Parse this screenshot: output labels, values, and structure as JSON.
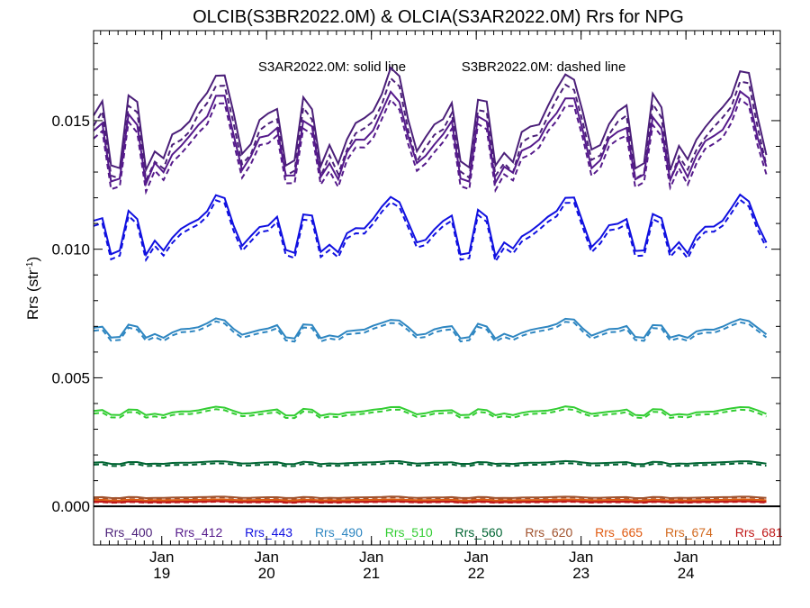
{
  "chart_data": {
    "type": "line",
    "title": "OLCIB(S3BR2022.0M) & OLCIA(S3AR2022.0M)  Rrs for NPG",
    "ylabel": "Rrs (str",
    "ylabel_sup": "-1",
    "ylabel_close": ")",
    "annotation_solid": "S3AR2022.0M: solid line",
    "annotation_dashed": "S3BR2022.0M: dashed line",
    "ylim": [
      -0.0015,
      0.0185
    ],
    "xlim": [
      2018.35,
      2024.9
    ],
    "grid": false,
    "legend_placement": "bottom-inside",
    "y_ticks": [
      {
        "value": 0.0,
        "label": "0.000"
      },
      {
        "value": 0.005,
        "label": "0.005"
      },
      {
        "value": 0.01,
        "label": "0.010"
      },
      {
        "value": 0.015,
        "label": "0.015"
      }
    ],
    "x_ticks": [
      {
        "value": 2019.0,
        "month": "Jan",
        "year": "19"
      },
      {
        "value": 2020.0,
        "month": "Jan",
        "year": "20"
      },
      {
        "value": 2021.0,
        "month": "Jan",
        "year": "21"
      },
      {
        "value": 2022.0,
        "month": "Jan",
        "year": "22"
      },
      {
        "value": 2023.0,
        "month": "Jan",
        "year": "23"
      },
      {
        "value": 2024.0,
        "month": "Jan",
        "year": "24"
      }
    ],
    "pattern": [
      0.1,
      0.3,
      -0.85,
      -0.85,
      0.45,
      0.3,
      -0.9,
      -0.55,
      -0.8,
      -0.3,
      -0.1,
      0.0,
      0.25,
      0.55,
      0.95,
      0.85,
      0.1,
      -0.6,
      -0.4,
      -0.05
    ],
    "series": [
      {
        "name": "Rrs_400",
        "color": "#4b1f79",
        "base": 0.015,
        "amp": 0.002,
        "dash_offset": -0.0004
      },
      {
        "name": "Rrs_412",
        "color": "#551a8b",
        "base": 0.0143,
        "amp": 0.0018,
        "dash_offset": -0.0003
      },
      {
        "name": "Rrs_443",
        "color": "#1010e0",
        "base": 0.0109,
        "amp": 0.0012,
        "dash_offset": -0.0002
      },
      {
        "name": "Rrs_490",
        "color": "#2e86c1",
        "base": 0.0069,
        "amp": 0.0004,
        "dash_offset": -0.00012
      },
      {
        "name": "Rrs_510",
        "color": "#32cd32",
        "base": 0.0037,
        "amp": 0.00018,
        "dash_offset": -0.0001
      },
      {
        "name": "Rrs_560",
        "color": "#006432",
        "base": 0.0017,
        "amp": 6e-05,
        "dash_offset": -8e-05
      },
      {
        "name": "Rrs_620",
        "color": "#a0522d",
        "base": 0.00035,
        "amp": 3e-05,
        "dash_offset": -3e-05
      },
      {
        "name": "Rrs_665",
        "color": "#e05a10",
        "base": 0.00025,
        "amp": 2e-05,
        "dash_offset": -2e-05
      },
      {
        "name": "Rrs_674",
        "color": "#d2691e",
        "base": 0.0002,
        "amp": 2e-05,
        "dash_offset": -2e-05
      },
      {
        "name": "Rrs_681",
        "color": "#c01818",
        "base": 0.00018,
        "amp": 2e-05,
        "dash_offset": -2e-05
      }
    ]
  }
}
